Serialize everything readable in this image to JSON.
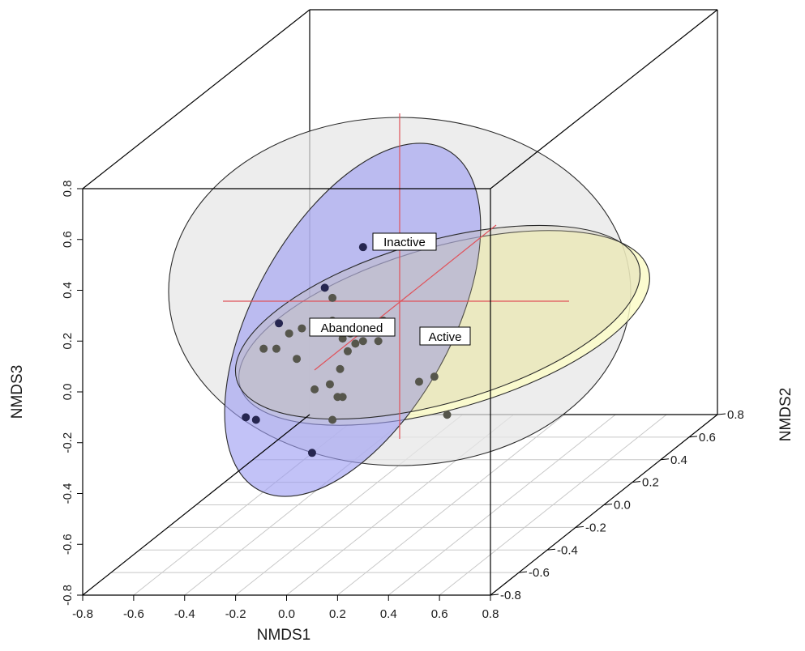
{
  "chart_data": {
    "type": "scatter",
    "title": "",
    "xlabel": "NMDS1",
    "ylabel": "NMDS3",
    "zlabel": "NMDS2",
    "x_range": [
      -0.8,
      0.8
    ],
    "y_range": [
      -0.8,
      0.8
    ],
    "z_range": [
      -0.8,
      0.8
    ],
    "x_ticks": [
      "-0.8",
      "-0.6",
      "-0.4",
      "-0.2",
      "0.0",
      "0.2",
      "0.4",
      "0.6",
      "0.8"
    ],
    "y_ticks": [
      "-0.8",
      "-0.6",
      "-0.4",
      "-0.2",
      "0.0",
      "0.2",
      "0.4",
      "0.6",
      "0.8"
    ],
    "z_ticks": [
      "-0.8",
      "-0.6",
      "-0.4",
      "-0.2",
      "0.0",
      "0.2",
      "0.4",
      "0.6",
      "0.8"
    ],
    "grid": "floor",
    "colors": {
      "inactive_fill": "#e6e6e6",
      "abandoned_fill": "#b3b3f2",
      "active_fill": "#fbfbc8",
      "centroid_lines": "#e0525a",
      "point_dark": "#262650",
      "point_gray": "#56564c",
      "box": "#000000",
      "floor_grid": "#c8c8c8"
    },
    "groups": [
      {
        "name": "Inactive"
      },
      {
        "name": "Abandoned"
      },
      {
        "name": "Active"
      }
    ],
    "points": [
      {
        "x": 0.3,
        "y": 0.57,
        "tone": "dark"
      },
      {
        "x": 0.15,
        "y": 0.41,
        "tone": "dark"
      },
      {
        "x": -0.03,
        "y": 0.27,
        "tone": "dark"
      },
      {
        "x": -0.16,
        "y": -0.1,
        "tone": "dark"
      },
      {
        "x": -0.12,
        "y": -0.11,
        "tone": "dark"
      },
      {
        "x": 0.1,
        "y": -0.24,
        "tone": "dark"
      },
      {
        "x": 0.18,
        "y": 0.37,
        "tone": "gray"
      },
      {
        "x": 0.18,
        "y": 0.28,
        "tone": "gray"
      },
      {
        "x": 0.06,
        "y": 0.25,
        "tone": "gray"
      },
      {
        "x": 0.01,
        "y": 0.23,
        "tone": "gray"
      },
      {
        "x": -0.04,
        "y": 0.17,
        "tone": "gray"
      },
      {
        "x": -0.09,
        "y": 0.17,
        "tone": "gray"
      },
      {
        "x": 0.04,
        "y": 0.13,
        "tone": "gray"
      },
      {
        "x": 0.22,
        "y": 0.21,
        "tone": "gray"
      },
      {
        "x": 0.25,
        "y": 0.23,
        "tone": "gray"
      },
      {
        "x": 0.27,
        "y": 0.19,
        "tone": "gray"
      },
      {
        "x": 0.24,
        "y": 0.16,
        "tone": "gray"
      },
      {
        "x": 0.3,
        "y": 0.2,
        "tone": "gray"
      },
      {
        "x": 0.36,
        "y": 0.2,
        "tone": "gray"
      },
      {
        "x": 0.38,
        "y": 0.28,
        "tone": "gray"
      },
      {
        "x": 0.21,
        "y": 0.09,
        "tone": "gray"
      },
      {
        "x": 0.17,
        "y": 0.03,
        "tone": "gray"
      },
      {
        "x": 0.11,
        "y": 0.01,
        "tone": "gray"
      },
      {
        "x": 0.2,
        "y": -0.02,
        "tone": "gray"
      },
      {
        "x": 0.22,
        "y": -0.02,
        "tone": "gray"
      },
      {
        "x": 0.18,
        "y": -0.11,
        "tone": "gray"
      },
      {
        "x": 0.52,
        "y": 0.04,
        "tone": "gray"
      },
      {
        "x": 0.58,
        "y": 0.06,
        "tone": "gray"
      },
      {
        "x": 0.63,
        "y": -0.09,
        "tone": "gray"
      }
    ]
  }
}
